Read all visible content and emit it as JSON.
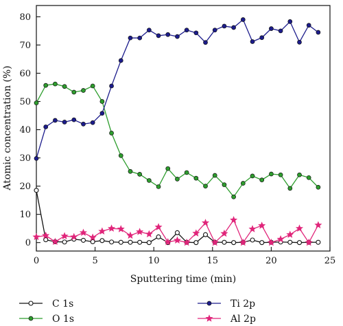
{
  "chart_data": {
    "type": "line",
    "title": "",
    "xlabel": "Sputtering time (min)",
    "ylabel": "Atomic concentration (%)",
    "xlim": [
      0,
      25
    ],
    "ylim": [
      -3,
      84
    ],
    "xticks": [
      0,
      5,
      10,
      15,
      20,
      25
    ],
    "yticks": [
      0,
      10,
      20,
      30,
      40,
      50,
      60,
      70,
      80
    ],
    "x_tick_labels": [
      "0",
      "5",
      "10",
      "15",
      "20",
      "25"
    ],
    "y_tick_labels": [
      "0",
      "10",
      "20",
      "30",
      "40",
      "50",
      "60",
      "70",
      "80"
    ],
    "grid": false,
    "legend_position": "bottom",
    "x": [
      0,
      0.8,
      1.6,
      2.4,
      3.2,
      4.0,
      4.8,
      5.6,
      6.4,
      7.2,
      8.0,
      8.8,
      9.6,
      10.4,
      11.2,
      12.0,
      12.8,
      13.6,
      14.4,
      15.2,
      16.0,
      16.8,
      17.6,
      18.4,
      19.2,
      20.0,
      20.8,
      21.6,
      22.4,
      23.2,
      24.0
    ],
    "series": [
      {
        "name": "C 1s",
        "color": "#111111",
        "marker": "circle-open",
        "values": [
          18.5,
          1.0,
          0.3,
          0.2,
          1.2,
          0.8,
          0.3,
          0.7,
          0.2,
          0.1,
          0.1,
          0.1,
          0.0,
          2.0,
          0.0,
          3.5,
          0.1,
          0.0,
          2.8,
          0.1,
          0.1,
          0.0,
          0.1,
          0.9,
          0.0,
          0.1,
          0.2,
          0.1,
          0.0,
          0.1,
          0.1
        ]
      },
      {
        "name": "O 1s",
        "color": "#2e9e2e",
        "marker": "circle",
        "values": [
          49.5,
          55.7,
          56.2,
          55.3,
          53.3,
          53.9,
          55.5,
          50.0,
          38.8,
          30.8,
          25.2,
          24.2,
          22.0,
          19.8,
          26.2,
          22.5,
          24.8,
          22.8,
          20.0,
          23.8,
          20.5,
          16.2,
          21.0,
          23.6,
          22.2,
          24.3,
          24.0,
          19.2,
          24.0,
          23.0,
          19.6
        ]
      },
      {
        "name": "Ti 2p",
        "color": "#1c1c8c",
        "marker": "circle",
        "values": [
          29.8,
          41.0,
          43.3,
          42.7,
          43.5,
          42.0,
          42.5,
          45.8,
          55.5,
          64.5,
          72.5,
          72.5,
          75.3,
          73.3,
          73.7,
          73.0,
          75.3,
          74.3,
          70.9,
          75.3,
          76.7,
          76.2,
          79.0,
          71.2,
          72.6,
          75.8,
          75.0,
          78.3,
          71.0,
          77.0,
          74.5
        ]
      },
      {
        "name": "Al 2p",
        "color": "#e0257a",
        "marker": "star",
        "values": [
          2.0,
          2.5,
          0.3,
          2.3,
          2.0,
          3.5,
          1.8,
          4.0,
          5.0,
          4.8,
          2.5,
          3.8,
          3.0,
          5.5,
          0.2,
          0.8,
          0.0,
          3.3,
          7.0,
          0.0,
          3.2,
          8.0,
          0.0,
          4.8,
          6.0,
          0.0,
          1.2,
          2.8,
          5.0,
          0.0,
          6.2
        ]
      }
    ]
  }
}
